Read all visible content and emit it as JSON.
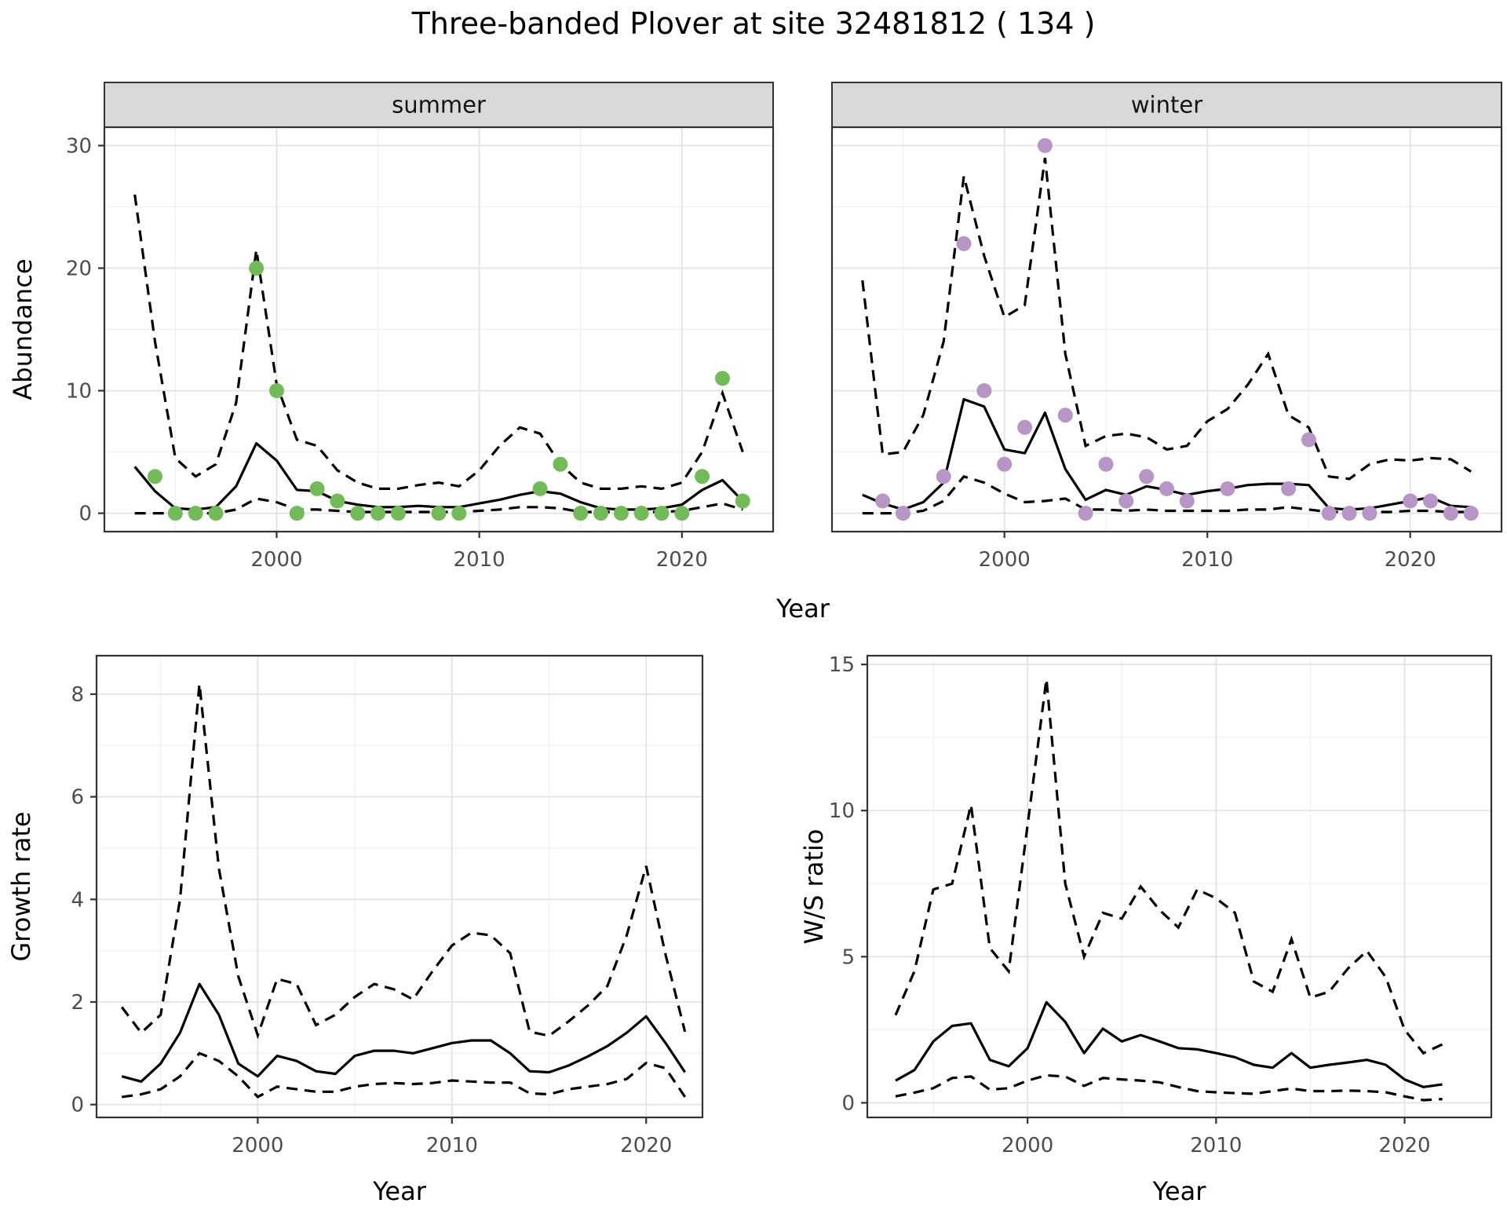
{
  "title": "Three-banded Plover at site 32481812 ( 134 )",
  "colors": {
    "summer_point": "#73BB58",
    "winter_point": "#B795C7",
    "line": "#000000",
    "strip_bg": "#D9D9D9",
    "strip_text": "#141414",
    "grid_major": "#E3E3E3",
    "grid_minor": "#F0F0F0",
    "panel_border": "#333333",
    "tick_label": "#4D4D4D"
  },
  "chart_data": [
    {
      "id": "summer",
      "type": "line",
      "facet_label": "summer",
      "xlabel": "Year",
      "ylabel": "Abundance",
      "xlim": [
        1991.5,
        2024.5
      ],
      "ylim": [
        -1.5,
        31.5
      ],
      "xticks": [
        2000,
        2010,
        2020
      ],
      "xminor": [
        1995,
        2005,
        2015
      ],
      "yticks": [
        0,
        10,
        20,
        30
      ],
      "yminor": [
        5,
        15,
        25
      ],
      "show_ytick_labels": true,
      "grid": "on",
      "legend": "none",
      "x": [
        1993,
        1994,
        1995,
        1996,
        1997,
        1998,
        1999,
        2000,
        2001,
        2002,
        2003,
        2004,
        2005,
        2006,
        2007,
        2008,
        2009,
        2010,
        2011,
        2012,
        2013,
        2014,
        2015,
        2016,
        2017,
        2018,
        2019,
        2020,
        2021,
        2022,
        2023
      ],
      "median": [
        3.8,
        1.8,
        0.4,
        0.3,
        0.5,
        2.2,
        5.7,
        4.3,
        1.9,
        1.8,
        1.0,
        0.7,
        0.5,
        0.5,
        0.6,
        0.5,
        0.5,
        0.8,
        1.1,
        1.5,
        1.8,
        1.6,
        0.9,
        0.4,
        0.3,
        0.3,
        0.4,
        0.7,
        1.9,
        2.7,
        1.0
      ],
      "upper": [
        26,
        14,
        4.5,
        3,
        4,
        9,
        21.5,
        10.5,
        6,
        5.5,
        3.5,
        2.5,
        2,
        2,
        2.3,
        2.5,
        2.2,
        3.5,
        5.5,
        7,
        6.5,
        4,
        2.5,
        2,
        2,
        2.2,
        2,
        2.5,
        5,
        9.8,
        5
      ],
      "lower": [
        0,
        0,
        0,
        0,
        0,
        0.3,
        1.2,
        0.9,
        0.3,
        0.3,
        0.2,
        0.1,
        0.1,
        0.1,
        0.1,
        0.1,
        0.1,
        0.2,
        0.3,
        0.5,
        0.5,
        0.4,
        0.1,
        0.1,
        0.1,
        0.1,
        0.1,
        0.2,
        0.5,
        0.8,
        0.3
      ],
      "points": {
        "x": [
          1994,
          1995,
          1996,
          1997,
          1999,
          2000,
          2001,
          2002,
          2003,
          2004,
          2005,
          2006,
          2008,
          2009,
          2013,
          2014,
          2015,
          2016,
          2017,
          2018,
          2019,
          2020,
          2021,
          2022,
          2023
        ],
        "y": [
          3,
          0,
          0,
          0,
          20,
          10,
          0,
          2,
          1,
          0,
          0,
          0,
          0,
          0,
          2,
          4,
          0,
          0,
          0,
          0,
          0,
          0,
          3,
          11,
          1
        ],
        "color": "#73BB58"
      }
    },
    {
      "id": "winter",
      "type": "line",
      "facet_label": "winter",
      "xlabel": "Year",
      "ylabel": "Abundance",
      "xlim": [
        1991.5,
        2024.5
      ],
      "ylim": [
        -1.5,
        31.5
      ],
      "xticks": [
        2000,
        2010,
        2020
      ],
      "xminor": [
        1995,
        2005,
        2015
      ],
      "yticks": [
        0,
        10,
        20,
        30
      ],
      "yminor": [
        5,
        15,
        25
      ],
      "show_ytick_labels": false,
      "grid": "on",
      "legend": "none",
      "x": [
        1993,
        1994,
        1995,
        1996,
        1997,
        1998,
        1999,
        2000,
        2001,
        2002,
        2003,
        2004,
        2005,
        2006,
        2007,
        2008,
        2009,
        2010,
        2011,
        2012,
        2013,
        2014,
        2015,
        2016,
        2017,
        2018,
        2019,
        2020,
        2021,
        2022,
        2023
      ],
      "median": [
        1.5,
        0.8,
        0.3,
        0.9,
        2.5,
        9.3,
        8.7,
        5.2,
        4.9,
        8.2,
        3.6,
        1.1,
        1.9,
        1.5,
        2.2,
        1.9,
        1.5,
        1.8,
        2.0,
        2.3,
        2.4,
        2.4,
        2.3,
        0.4,
        0.3,
        0.4,
        0.7,
        1.0,
        1.3,
        0.6,
        0.5
      ],
      "upper": [
        19,
        4.8,
        5,
        8,
        14,
        27.5,
        21,
        16,
        17,
        29,
        13,
        5.5,
        6.3,
        6.5,
        6.2,
        5.2,
        5.5,
        7.5,
        8.5,
        10.5,
        13,
        8,
        7,
        3,
        2.8,
        4,
        4.4,
        4.3,
        4.5,
        4.4,
        3.4
      ],
      "lower": [
        0,
        0,
        0,
        0.2,
        1.0,
        3.0,
        2.5,
        1.6,
        0.9,
        1.0,
        1.2,
        0.3,
        0.3,
        0.2,
        0.3,
        0.2,
        0.2,
        0.2,
        0.2,
        0.3,
        0.3,
        0.5,
        0.3,
        0.1,
        0.1,
        0.1,
        0.1,
        0.2,
        0.2,
        0.1,
        0.1
      ],
      "points": {
        "x": [
          1994,
          1995,
          1997,
          1998,
          1999,
          2000,
          2001,
          2002,
          2003,
          2004,
          2005,
          2006,
          2007,
          2008,
          2009,
          2011,
          2014,
          2015,
          2016,
          2017,
          2018,
          2020,
          2021,
          2022,
          2023
        ],
        "y": [
          1,
          0,
          3,
          22,
          10,
          4,
          7,
          30,
          8,
          0,
          4,
          1,
          3,
          2,
          1,
          2,
          2,
          6,
          0,
          0,
          0,
          1,
          1,
          0,
          0
        ],
        "color": "#B795C7"
      }
    },
    {
      "id": "growth",
      "type": "line",
      "facet_label": null,
      "xlabel": "Year",
      "ylabel": "Growth rate",
      "xlim": [
        1991.7,
        2022.9
      ],
      "ylim": [
        -0.25,
        8.75
      ],
      "xticks": [
        2000,
        2010,
        2020
      ],
      "xminor": [
        1995,
        2005,
        2015
      ],
      "yticks": [
        0,
        2,
        4,
        6,
        8
      ],
      "yminor": [
        1,
        3,
        5,
        7
      ],
      "show_ytick_labels": true,
      "grid": "on",
      "legend": "none",
      "x": [
        1993,
        1994,
        1995,
        1996,
        1997,
        1998,
        1999,
        2000,
        2001,
        2002,
        2003,
        2004,
        2005,
        2006,
        2007,
        2008,
        2009,
        2010,
        2011,
        2012,
        2013,
        2014,
        2015,
        2016,
        2017,
        2018,
        2019,
        2020,
        2021,
        2022
      ],
      "median": [
        0.55,
        0.45,
        0.8,
        1.4,
        2.35,
        1.75,
        0.8,
        0.55,
        0.95,
        0.85,
        0.65,
        0.6,
        0.95,
        1.05,
        1.05,
        1.0,
        1.1,
        1.2,
        1.25,
        1.25,
        1.0,
        0.65,
        0.63,
        0.76,
        0.94,
        1.14,
        1.4,
        1.72,
        1.2,
        0.63
      ],
      "upper": [
        1.9,
        1.4,
        1.75,
        4.0,
        8.2,
        4.6,
        2.5,
        1.35,
        2.45,
        2.35,
        1.55,
        1.75,
        2.1,
        2.35,
        2.25,
        2.05,
        2.6,
        3.1,
        3.35,
        3.3,
        2.95,
        1.42,
        1.34,
        1.62,
        1.93,
        2.31,
        3.3,
        4.65,
        2.92,
        1.42
      ],
      "lower": [
        0.15,
        0.2,
        0.3,
        0.55,
        1.0,
        0.85,
        0.55,
        0.15,
        0.35,
        0.3,
        0.25,
        0.25,
        0.35,
        0.4,
        0.42,
        0.4,
        0.42,
        0.47,
        0.45,
        0.43,
        0.43,
        0.22,
        0.2,
        0.3,
        0.35,
        0.4,
        0.5,
        0.81,
        0.71,
        0.15
      ],
      "points": null
    },
    {
      "id": "ws",
      "type": "line",
      "facet_label": null,
      "xlabel": "Year",
      "ylabel": "W/S ratio",
      "xlim": [
        1991.5,
        2024.6
      ],
      "ylim": [
        -0.5,
        15.3
      ],
      "xticks": [
        2000,
        2010,
        2020
      ],
      "xminor": [
        1995,
        2005,
        2015
      ],
      "yticks": [
        0,
        5,
        10,
        15
      ],
      "yminor": [
        2.5,
        7.5,
        12.5
      ],
      "show_ytick_labels": true,
      "grid": "on",
      "legend": "none",
      "x": [
        1993,
        1994,
        1995,
        1996,
        1997,
        1998,
        1999,
        2000,
        2001,
        2002,
        2003,
        2004,
        2005,
        2006,
        2007,
        2008,
        2009,
        2010,
        2011,
        2012,
        2013,
        2014,
        2015,
        2016,
        2017,
        2018,
        2019,
        2020,
        2021,
        2022
      ],
      "median": [
        0.76,
        1.12,
        2.1,
        2.63,
        2.72,
        1.47,
        1.25,
        1.87,
        3.44,
        2.77,
        1.7,
        2.54,
        2.1,
        2.32,
        2.1,
        1.87,
        1.83,
        1.7,
        1.56,
        1.3,
        1.2,
        1.7,
        1.2,
        1.3,
        1.38,
        1.47,
        1.3,
        0.8,
        0.54,
        0.63
      ],
      "upper": [
        3.0,
        4.5,
        7.3,
        7.5,
        10.2,
        5.3,
        4.5,
        9.5,
        14.5,
        7.5,
        5.0,
        6.5,
        6.3,
        7.4,
        6.6,
        6.0,
        7.3,
        7.0,
        6.5,
        4.15,
        3.8,
        5.6,
        3.6,
        3.8,
        4.6,
        5.2,
        4.3,
        2.5,
        1.7,
        2.0
      ],
      "lower": [
        0.22,
        0.35,
        0.5,
        0.85,
        0.9,
        0.45,
        0.5,
        0.76,
        0.94,
        0.9,
        0.58,
        0.85,
        0.8,
        0.76,
        0.7,
        0.54,
        0.4,
        0.36,
        0.33,
        0.31,
        0.4,
        0.49,
        0.4,
        0.4,
        0.42,
        0.4,
        0.36,
        0.22,
        0.09,
        0.13
      ],
      "points": null
    }
  ]
}
